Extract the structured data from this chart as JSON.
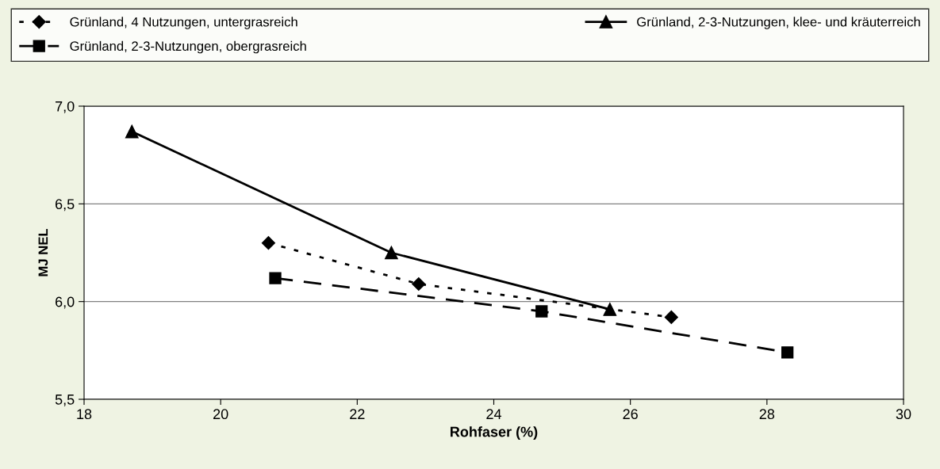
{
  "chart_data": {
    "type": "line",
    "xlabel": "Rohfaser (%)",
    "ylabel": "MJ NEL",
    "xlim": [
      18,
      30
    ],
    "xticks": [
      18,
      20,
      22,
      24,
      26,
      28,
      30
    ],
    "ylim": [
      5.5,
      7.0
    ],
    "yticks": [
      {
        "value": 5.5,
        "label": "5,5"
      },
      {
        "value": 6.0,
        "label": "6,0"
      },
      {
        "value": 6.5,
        "label": "6,5"
      },
      {
        "value": 7.0,
        "label": "7,0"
      }
    ],
    "grid": "y",
    "legend": "top",
    "series": [
      {
        "name": "Grünland, 4 Nutzungen, untergrasreich",
        "color": "#000000",
        "marker": "diamond",
        "line_style": "dotted",
        "x": [
          20.7,
          22.9,
          26.6
        ],
        "values": [
          6.3,
          6.09,
          5.92
        ]
      },
      {
        "name": "Grünland, 2-3-Nutzungen, obergrasreich",
        "color": "#000000",
        "marker": "square",
        "line_style": "dashed",
        "x": [
          20.8,
          24.7,
          28.3
        ],
        "values": [
          6.12,
          5.95,
          5.74
        ]
      },
      {
        "name": "Grünland, 2-3-Nutzungen, klee- und kräuterreich",
        "color": "#000000",
        "marker": "triangle",
        "line_style": "solid",
        "x": [
          18.7,
          22.5,
          25.7
        ],
        "values": [
          6.87,
          6.25,
          5.96
        ]
      }
    ]
  }
}
